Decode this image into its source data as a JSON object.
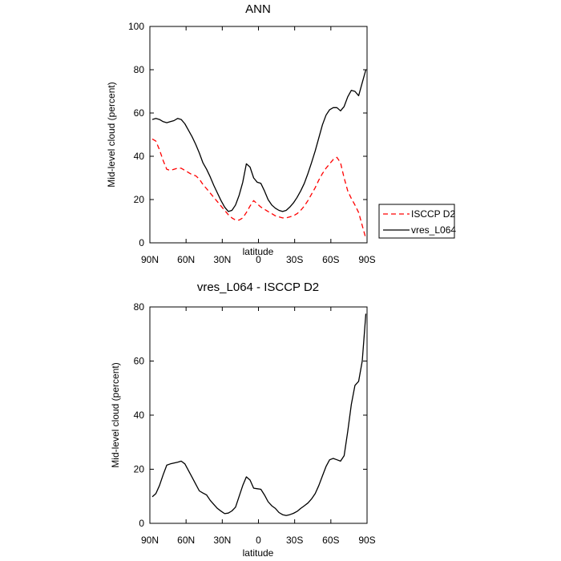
{
  "chart_data": [
    {
      "type": "line",
      "title": "ANN",
      "xlabel": "latitude",
      "ylabel": "Mid-level cloud (percent)",
      "xlim": [
        90,
        -90
      ],
      "ylim": [
        0,
        100
      ],
      "x_ticks": [
        90,
        60,
        30,
        0,
        -30,
        -60,
        -90
      ],
      "x_tick_labels": [
        "90N",
        "60N",
        "30N",
        "0",
        "30S",
        "60S",
        "90S"
      ],
      "y_ticks": [
        0,
        20,
        40,
        60,
        80,
        100
      ],
      "y_tick_labels": [
        "0",
        "20",
        "40",
        "60",
        "80",
        "100"
      ],
      "legend_position": "right, outside plot",
      "series": [
        {
          "name": "ISCCP D2",
          "color": "#ff0000",
          "dash": "dashed",
          "x": [
            88,
            85,
            82,
            79,
            76,
            73,
            70,
            67,
            64,
            61,
            58,
            55,
            52,
            49,
            46,
            43,
            40,
            37,
            34,
            31,
            28,
            25,
            22,
            19,
            16,
            13,
            10,
            7,
            4,
            1,
            -2,
            -5,
            -8,
            -11,
            -14,
            -17,
            -20,
            -23,
            -26,
            -29,
            -32,
            -35,
            -38,
            -41,
            -44,
            -47,
            -50,
            -53,
            -56,
            -59,
            -62,
            -65,
            -68,
            -71,
            -74,
            -77,
            -80,
            -83,
            -86,
            -89
          ],
          "values": [
            48,
            47,
            43,
            38,
            34,
            33.5,
            34,
            34.5,
            34.5,
            33.5,
            32.5,
            31.5,
            31,
            29.5,
            27,
            25,
            23,
            21,
            19,
            17,
            15,
            13,
            11.5,
            10.5,
            10.5,
            11.5,
            14,
            17,
            19.5,
            18,
            16.5,
            15.5,
            14.5,
            13.5,
            12.5,
            12,
            11.5,
            11.5,
            12,
            12.5,
            13.5,
            15,
            17,
            19.5,
            22.5,
            25.5,
            29,
            32,
            34.5,
            36.5,
            38.5,
            39.5,
            37,
            30,
            24,
            20.5,
            17.5,
            14,
            8,
            2
          ]
        },
        {
          "name": "vres_L064",
          "color": "#000000",
          "dash": "solid",
          "x": [
            88,
            85,
            82,
            79,
            76,
            73,
            70,
            67,
            64,
            61,
            58,
            55,
            52,
            49,
            46,
            43,
            40,
            37,
            34,
            31,
            28,
            25,
            22,
            19,
            16,
            13,
            10,
            7,
            4,
            1,
            -2,
            -5,
            -8,
            -11,
            -14,
            -17,
            -20,
            -23,
            -26,
            -29,
            -32,
            -35,
            -38,
            -41,
            -44,
            -47,
            -50,
            -53,
            -56,
            -59,
            -62,
            -65,
            -68,
            -71,
            -74,
            -77,
            -80,
            -83,
            -86,
            -89
          ],
          "values": [
            57,
            57.5,
            57,
            56,
            55.5,
            56,
            56.5,
            57.5,
            57,
            55,
            52,
            49,
            45.5,
            41.5,
            37,
            34,
            30.5,
            26.5,
            23,
            19.5,
            16.5,
            14.5,
            15,
            17.5,
            22,
            28,
            36.5,
            35,
            30,
            28,
            27.5,
            24,
            20,
            17.5,
            16,
            15,
            14.5,
            15,
            16.5,
            18.5,
            21,
            24,
            27.5,
            32,
            37,
            42.5,
            48.5,
            54.5,
            59,
            61.5,
            62.5,
            62.5,
            61,
            63,
            67.5,
            70.5,
            70,
            68,
            74,
            80
          ]
        }
      ]
    },
    {
      "type": "line",
      "title": "vres_L064 - ISCCP D2",
      "xlabel": "latitude",
      "ylabel": "Mid-level cloud (percent)",
      "xlim": [
        90,
        -90
      ],
      "ylim": [
        0,
        80
      ],
      "x_ticks": [
        90,
        60,
        30,
        0,
        -30,
        -60,
        -90
      ],
      "x_tick_labels": [
        "90N",
        "60N",
        "30N",
        "0",
        "30S",
        "60S",
        "90S"
      ],
      "y_ticks": [
        0,
        20,
        40,
        60,
        80
      ],
      "y_tick_labels": [
        "0",
        "20",
        "40",
        "60",
        "80"
      ],
      "series": [
        {
          "color": "#000000",
          "dash": "solid",
          "x": [
            88,
            85,
            82,
            79,
            76,
            73,
            70,
            67,
            64,
            61,
            58,
            55,
            52,
            49,
            46,
            43,
            40,
            37,
            34,
            31,
            28,
            25,
            22,
            19,
            16,
            13,
            10,
            7,
            4,
            1,
            -2,
            -5,
            -8,
            -11,
            -14,
            -17,
            -20,
            -23,
            -26,
            -29,
            -32,
            -35,
            -38,
            -41,
            -44,
            -47,
            -50,
            -53,
            -56,
            -59,
            -62,
            -65,
            -68,
            -71,
            -74,
            -77,
            -80,
            -83,
            -86,
            -89
          ],
          "values": [
            9.8,
            11,
            14,
            18,
            21.5,
            22,
            22.3,
            22.6,
            23,
            22,
            19.5,
            17,
            14.5,
            12,
            11.2,
            10.5,
            8.5,
            7,
            5.5,
            4.5,
            3.6,
            3.8,
            4.6,
            6,
            10,
            14,
            17.2,
            16,
            13,
            12.8,
            12.6,
            10.5,
            8,
            6.5,
            5.5,
            4,
            3.2,
            2.9,
            3.2,
            3.7,
            4.4,
            5.5,
            6.5,
            7.5,
            9,
            11,
            14,
            17.5,
            21,
            23.5,
            24,
            23.5,
            23,
            25,
            34,
            44,
            51,
            52.5,
            60,
            77.5
          ]
        }
      ]
    }
  ]
}
